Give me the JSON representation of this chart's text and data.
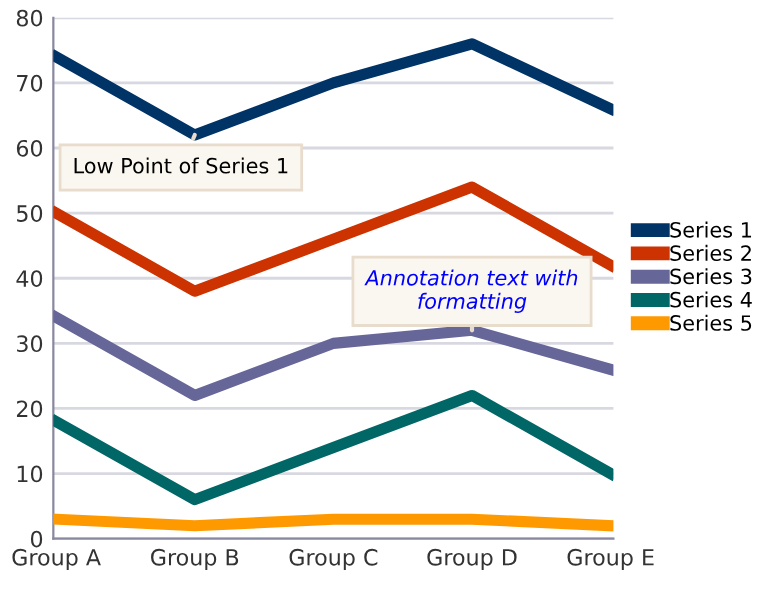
{
  "chart_data": {
    "type": "line",
    "categories": [
      "Group A",
      "Group B",
      "Group C",
      "Group D",
      "Group E"
    ],
    "series": [
      {
        "name": "Series 1",
        "color": "#003366",
        "values": [
          74,
          62,
          70,
          76,
          66
        ]
      },
      {
        "name": "Series 2",
        "color": "#cc3300",
        "values": [
          50,
          38,
          46,
          54,
          42
        ]
      },
      {
        "name": "Series 3",
        "color": "#666699",
        "values": [
          34,
          22,
          30,
          32,
          26
        ]
      },
      {
        "name": "Series 4",
        "color": "#006666",
        "values": [
          18,
          6,
          14,
          22,
          10
        ]
      },
      {
        "name": "Series 5",
        "color": "#ff9900",
        "values": [
          3,
          2,
          3,
          3,
          2
        ]
      }
    ],
    "ylim": [
      0,
      80
    ],
    "yticks": [
      0,
      10,
      20,
      30,
      40,
      50,
      60,
      70,
      80
    ],
    "grid": "y",
    "legend": "right",
    "marker": "none",
    "line_style": "solid",
    "annotations": [
      {
        "text": "Low Point of Series 1",
        "x": "Group B",
        "y": 62
      },
      {
        "text": "Annotation text with\nformatting",
        "x": "Group D",
        "y": 32
      }
    ]
  }
}
